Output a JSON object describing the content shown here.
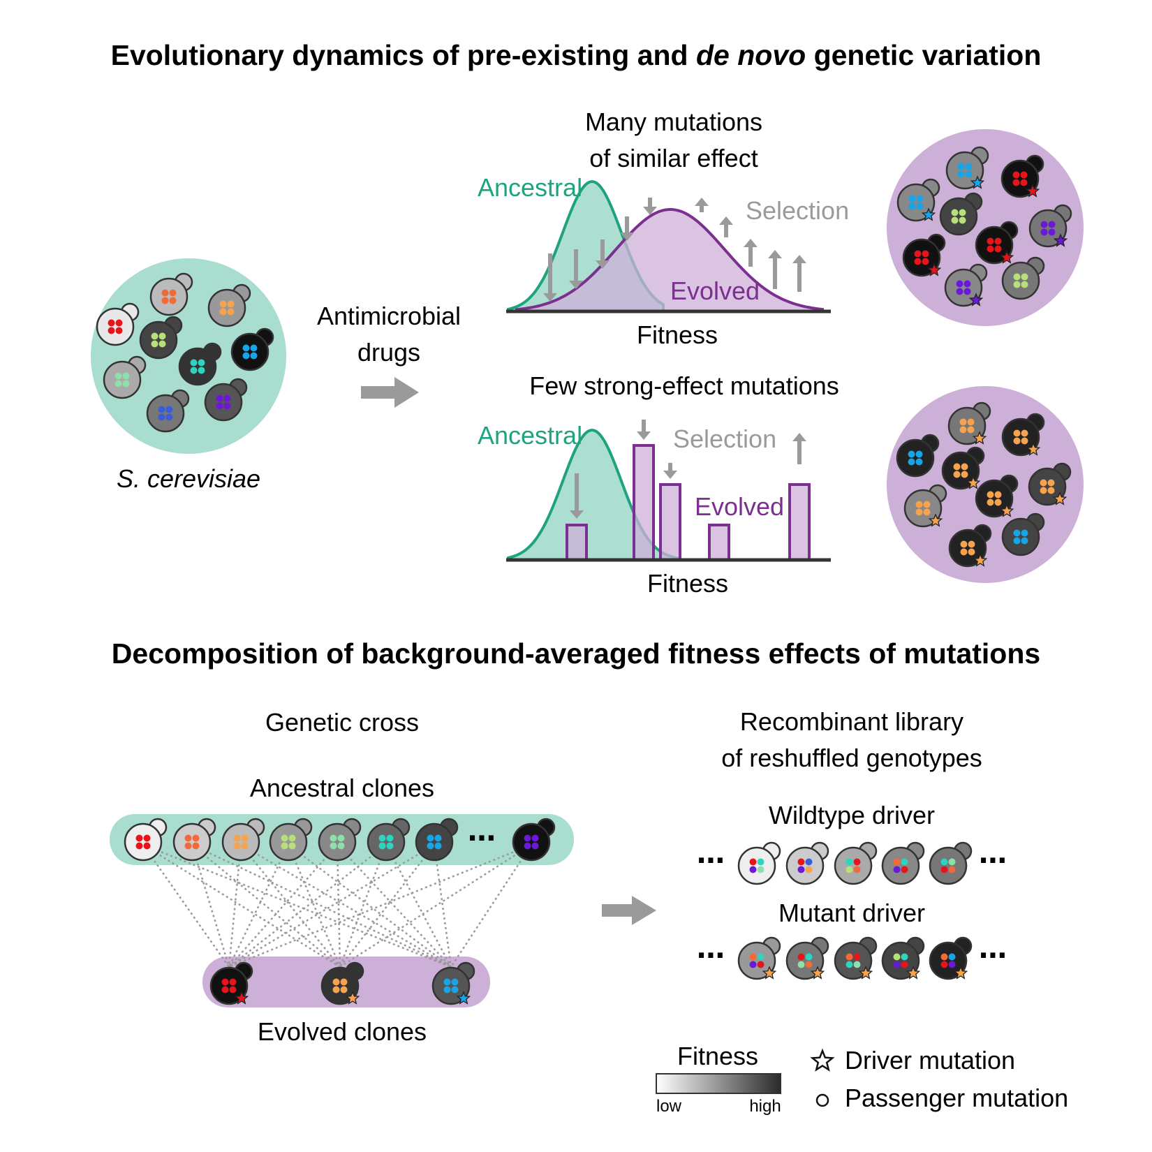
{
  "titles": {
    "top_prefix": "Evolutionary dynamics of pre-existing and ",
    "top_italic": "de novo",
    "top_suffix": " genetic variation",
    "bottom": "Decomposition of background-averaged fitness effects of mutations"
  },
  "top_section": {
    "species_label": "S. cerevisiae",
    "drug_label_line1": "Antimicrobial",
    "drug_label_line2": "drugs",
    "panel_a": {
      "title_line1": "Many mutations",
      "title_line2": "of similar effect",
      "ancestral": "Ancestral",
      "evolved": "Evolved",
      "selection": "Selection",
      "xlabel": "Fitness"
    },
    "panel_b": {
      "title": "Few strong-effect mutations",
      "ancestral": "Ancestral",
      "evolved": "Evolved",
      "selection": "Selection",
      "xlabel": "Fitness"
    }
  },
  "bottom_section": {
    "cross_title": "Genetic cross",
    "ancestral_clones": "Ancestral clones",
    "evolved_clones": "Evolved clones",
    "library_title_line1": "Recombinant library",
    "library_title_line2": "of reshuffled genotypes",
    "wildtype_driver": "Wildtype driver",
    "mutant_driver": "Mutant driver",
    "ellipsis": "⋯"
  },
  "legend": {
    "fitness": "Fitness",
    "low": "low",
    "high": "high",
    "driver": "Driver mutation",
    "passenger": "Passenger mutation"
  },
  "colors": {
    "ancestral": "#1fa37f",
    "ancestral_fill": "#a8ddd0",
    "evolved": "#7b2f8f",
    "evolved_fill": "#cdb0d8",
    "selection_gray": "#9a9a9a"
  }
}
